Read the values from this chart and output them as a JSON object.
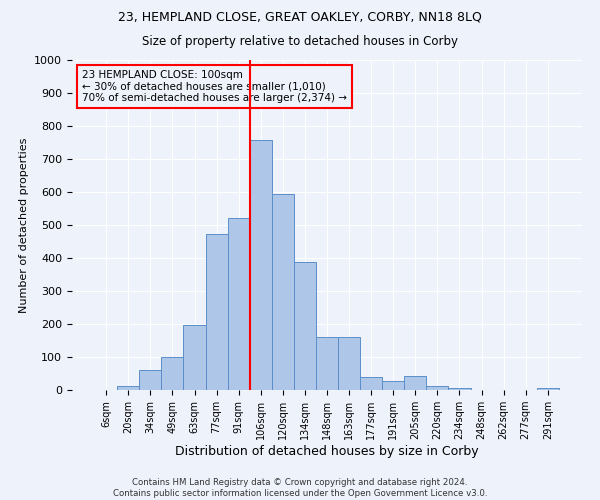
{
  "title1": "23, HEMPLAND CLOSE, GREAT OAKLEY, CORBY, NN18 8LQ",
  "title2": "Size of property relative to detached houses in Corby",
  "xlabel": "Distribution of detached houses by size in Corby",
  "ylabel": "Number of detached properties",
  "footer1": "Contains HM Land Registry data © Crown copyright and database right 2024.",
  "footer2": "Contains public sector information licensed under the Open Government Licence v3.0.",
  "annotation_line1": "23 HEMPLAND CLOSE: 100sqm",
  "annotation_line2": "← 30% of detached houses are smaller (1,010)",
  "annotation_line3": "70% of semi-detached houses are larger (2,374) →",
  "bar_labels": [
    "6sqm",
    "20sqm",
    "34sqm",
    "49sqm",
    "63sqm",
    "77sqm",
    "91sqm",
    "106sqm",
    "120sqm",
    "134sqm",
    "148sqm",
    "163sqm",
    "177sqm",
    "191sqm",
    "205sqm",
    "220sqm",
    "234sqm",
    "248sqm",
    "262sqm",
    "277sqm",
    "291sqm"
  ],
  "bar_values": [
    0,
    13,
    60,
    100,
    197,
    473,
    520,
    757,
    595,
    387,
    160,
    160,
    40,
    28,
    43,
    13,
    7,
    0,
    0,
    0,
    7
  ],
  "bar_color": "#aec6e8",
  "bar_edge_color": "#5b8fc9",
  "vline_color": "red",
  "annotation_box_color": "red",
  "background_color": "#eef2fb",
  "grid_color": "#ffffff",
  "ylim": [
    0,
    1000
  ],
  "yticks": [
    0,
    100,
    200,
    300,
    400,
    500,
    600,
    700,
    800,
    900,
    1000
  ],
  "vline_index": 7
}
